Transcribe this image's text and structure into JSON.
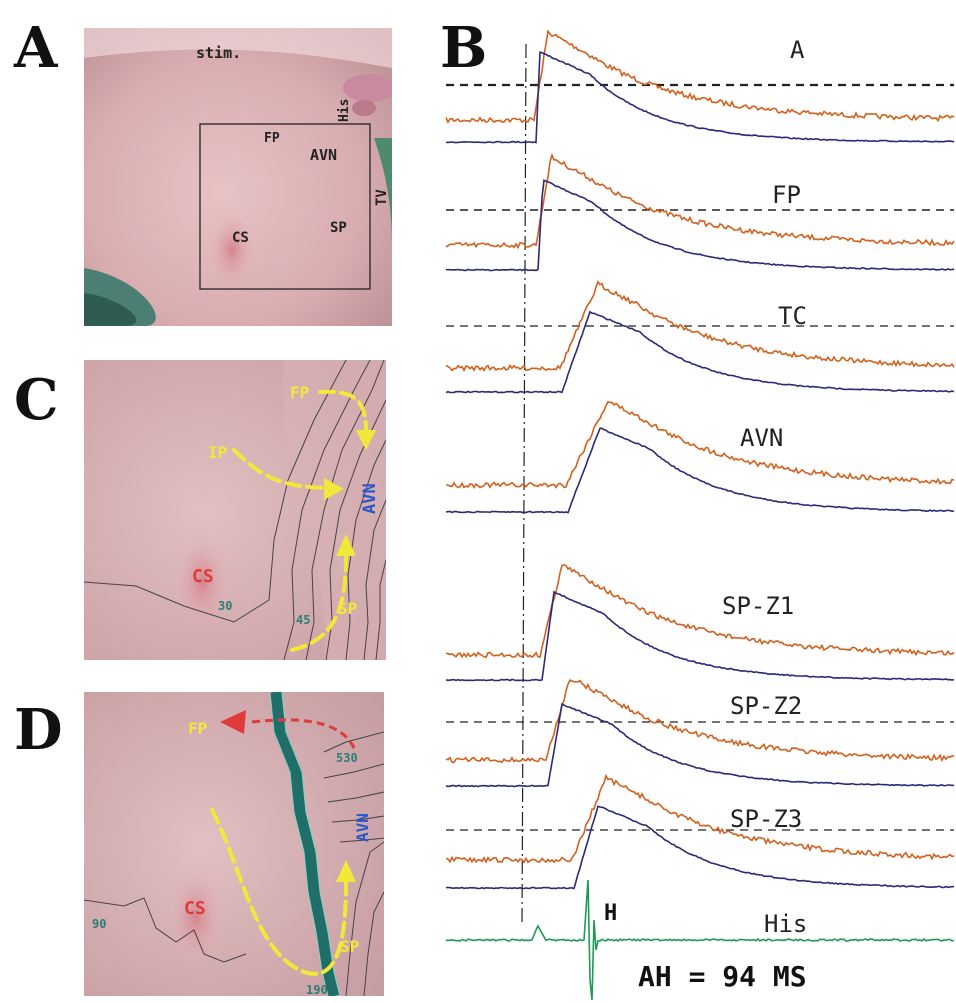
{
  "panels": {
    "a": {
      "letter": "A",
      "labels": {
        "stim": "stim.",
        "his": "His",
        "fp": "FP",
        "avn": "AVN",
        "tv": "TV",
        "cs": "CS",
        "sp": "SP"
      }
    },
    "b": {
      "letter": "B",
      "traces": [
        {
          "label": "A"
        },
        {
          "label": "FP"
        },
        {
          "label": "TC"
        },
        {
          "label": "AVN"
        },
        {
          "label": "SP-Z1"
        },
        {
          "label": "SP-Z2"
        },
        {
          "label": "SP-Z3"
        },
        {
          "label": "His"
        }
      ],
      "h_label": "H",
      "ah_text": "AH = 94 MS"
    },
    "c": {
      "letter": "C",
      "labels": {
        "fp": "FP",
        "ip": "IP",
        "avn": "AVN",
        "cs": "CS",
        "sp": "SP",
        "iso30": "30",
        "iso45": "45"
      }
    },
    "d": {
      "letter": "D",
      "labels": {
        "fp": "FP",
        "avn": "AVN",
        "cs": "CS",
        "sp": "SP",
        "iso530": "530",
        "iso90": "90",
        "iso190": "190"
      }
    }
  },
  "colors": {
    "orange_trace": "#d2601e",
    "blue_trace": "#2c2a78",
    "his_trace": "#1e9a55",
    "yellow": "#f2e83a",
    "avn_blue": "#2a57c8",
    "cs_red": "#e03a3a",
    "iso_teal": "#2c7e78",
    "block_teal": "#1f6f68"
  }
}
